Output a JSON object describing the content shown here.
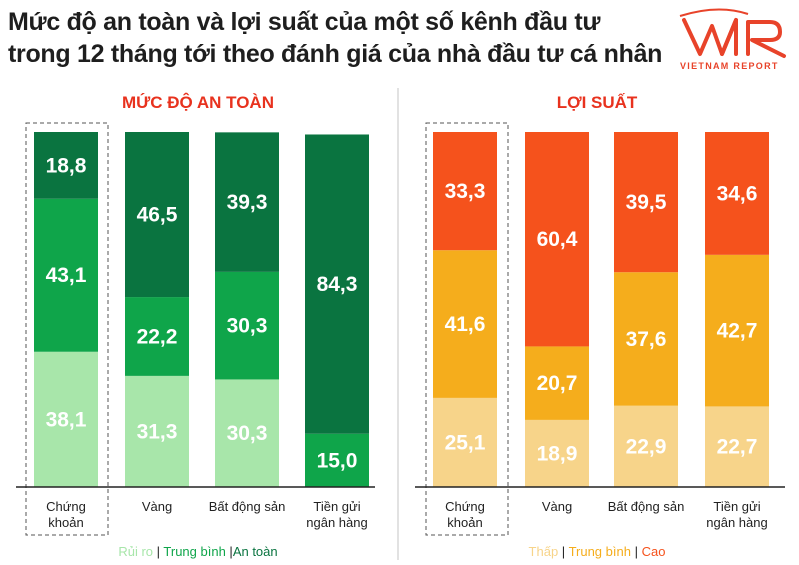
{
  "header": {
    "title_line1": "Mức độ an toàn và lợi suất của một số kênh đầu tư",
    "title_line2": "trong 12 tháng tới theo đánh giá của nhà đầu tư cá nhân"
  },
  "logo": {
    "mark": "VNR",
    "subtitle": "VIETNAM REPORT",
    "color": "#e8432a"
  },
  "chart_data": [
    {
      "type": "bar",
      "stacked": true,
      "title": "MỨC ĐỘ AN TOÀN",
      "title_color": "#e8321e",
      "categories": [
        [
          "Chứng",
          "khoản"
        ],
        [
          "Vàng"
        ],
        [
          "Bất động sản"
        ],
        [
          "Tiền gửi",
          "ngân hàng"
        ]
      ],
      "highlighted_category": 0,
      "ylim": [
        0,
        100
      ],
      "series": [
        {
          "name": "Rủi ro",
          "color": "#a8e6aa",
          "values": [
            38.1,
            31.3,
            30.3,
            0
          ]
        },
        {
          "name": "Trung bình",
          "color": "#0fa54a",
          "values": [
            43.1,
            22.2,
            30.3,
            15.0
          ]
        },
        {
          "name": "An toàn",
          "color": "#0a7440",
          "values": [
            18.8,
            46.5,
            39.3,
            84.3
          ]
        }
      ],
      "value_labels": [
        [
          "38,1",
          "31,3",
          "30,3",
          ""
        ],
        [
          "43,1",
          "22,2",
          "30,3",
          "15,0"
        ],
        [
          "18,8",
          "46,5",
          "39,3",
          "84,3"
        ]
      ],
      "legend_separators": [
        " | ",
        " |"
      ]
    },
    {
      "type": "bar",
      "stacked": true,
      "title": "LỢI SUẤT",
      "title_color": "#e8321e",
      "categories": [
        [
          "Chứng",
          "khoản"
        ],
        [
          "Vàng"
        ],
        [
          "Bất động sản"
        ],
        [
          "Tiền gửi",
          "ngân hàng"
        ]
      ],
      "highlighted_category": 0,
      "ylim": [
        0,
        100
      ],
      "series": [
        {
          "name": "Thấp",
          "color": "#f7d48a",
          "values": [
            25.1,
            18.9,
            22.9,
            22.7
          ]
        },
        {
          "name": "Trung bình",
          "color": "#f5ad1c",
          "values": [
            41.6,
            20.7,
            37.6,
            42.7
          ]
        },
        {
          "name": "Cao",
          "color": "#f5521c",
          "values": [
            33.3,
            60.4,
            39.5,
            34.6
          ]
        }
      ],
      "value_labels": [
        [
          "25,1",
          "18,9",
          "22,9",
          "22,7"
        ],
        [
          "41,6",
          "20,7",
          "37,6",
          "42,7"
        ],
        [
          "33,3",
          "60,4",
          "39,5",
          "34,6"
        ]
      ],
      "legend_separators": [
        " | ",
        " | "
      ]
    }
  ]
}
